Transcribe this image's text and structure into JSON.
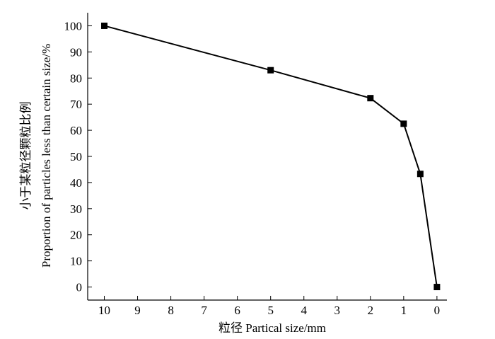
{
  "chart_data": {
    "type": "line",
    "title": "",
    "xlabel": "粒径 Partical size/mm",
    "ylabel_line1": "小于某粒径颗粒比例",
    "ylabel_line2": "Proportion of particles less than certain size/%",
    "x_axis_reversed": true,
    "xlim": [
      10.5,
      -0.3
    ],
    "ylim": [
      -5,
      105
    ],
    "x_ticks": [
      10,
      9,
      8,
      7,
      6,
      5,
      4,
      3,
      2,
      1,
      0
    ],
    "x_tick_labels": [
      "10",
      "9",
      "8",
      "7",
      "6",
      "5",
      "4",
      "3",
      "2",
      "1",
      "0"
    ],
    "y_ticks": [
      0,
      10,
      20,
      30,
      40,
      50,
      60,
      70,
      80,
      90,
      100
    ],
    "y_tick_labels": [
      "0",
      "10",
      "20",
      "30",
      "40",
      "50",
      "60",
      "70",
      "80",
      "90",
      "100"
    ],
    "grid": false,
    "marker": "square",
    "line_color": "#000000",
    "series": [
      {
        "x": [
          10,
          5,
          2,
          1,
          0.5,
          0
        ],
        "y": [
          100,
          83,
          72.3,
          62.5,
          43.3,
          0
        ]
      }
    ]
  }
}
